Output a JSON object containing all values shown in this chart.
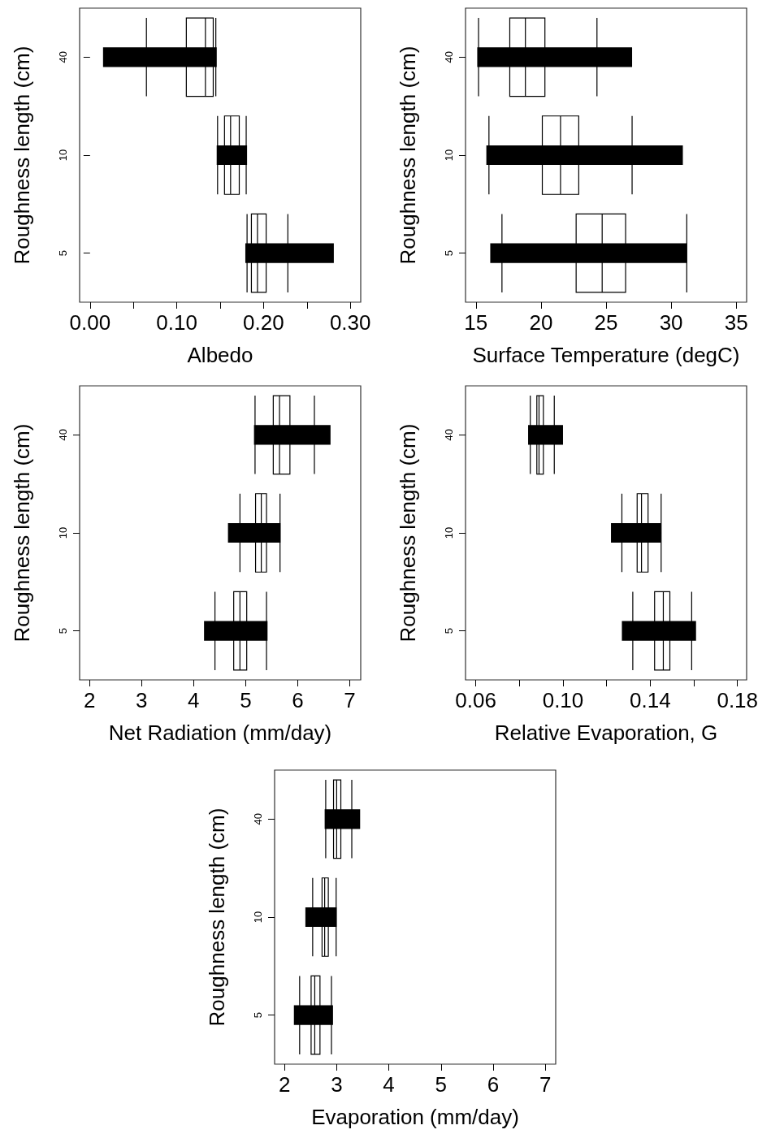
{
  "chart_data": [
    {
      "type": "box",
      "orientation": "horizontal",
      "xlabel": "Albedo",
      "ylabel": "Roughness length (cm)",
      "categories": [
        "40",
        "10",
        "5"
      ],
      "xlim": [
        -0.012,
        0.312
      ],
      "xticks": [
        {
          "value": 0,
          "label": "0.00"
        },
        {
          "value": 0.05,
          "label": null
        },
        {
          "value": 0.1,
          "label": "0.10"
        },
        {
          "value": 0.15,
          "label": null
        },
        {
          "value": 0.2,
          "label": "0.20"
        },
        {
          "value": 0.25,
          "label": null
        },
        {
          "value": 0.3,
          "label": "0.30"
        }
      ],
      "series": [
        {
          "type": "box",
          "color": "#000000",
          "boxes": [
            {
              "low": 0.065,
              "q1": 0.111,
              "median": 0.133,
              "q3": 0.142,
              "high": 0.145
            },
            {
              "low": 0.147,
              "q1": 0.155,
              "median": 0.162,
              "q3": 0.172,
              "high": 0.18
            },
            {
              "low": 0.181,
              "q1": 0.186,
              "median": 0.193,
              "q3": 0.203,
              "high": 0.228
            }
          ]
        },
        {
          "type": "bar",
          "color": "#000000",
          "base": [
            0.015,
            0.146,
            0.179
          ],
          "values": [
            0.131,
            0.035,
            0.102
          ]
        }
      ]
    },
    {
      "type": "box",
      "orientation": "horizontal",
      "xlabel": "Surface Temperature (degC)",
      "ylabel": "Roughness length (cm)",
      "categories": [
        "40",
        "10",
        "5"
      ],
      "xlim": [
        14.2,
        35.8
      ],
      "xticks": [
        15,
        20,
        25,
        30,
        35
      ],
      "series": [
        {
          "type": "box",
          "color": "#000000",
          "boxes": [
            {
              "low": 15.2,
              "q1": 17.6,
              "median": 18.8,
              "q3": 20.3,
              "high": 24.3
            },
            {
              "low": 16.0,
              "q1": 20.1,
              "median": 21.5,
              "q3": 22.9,
              "high": 27.0
            },
            {
              "low": 17.0,
              "q1": 22.7,
              "median": 24.7,
              "q3": 26.5,
              "high": 31.2
            }
          ]
        },
        {
          "type": "bar",
          "color": "#000000",
          "base": [
            15.1,
            15.8,
            16.1
          ],
          "values": [
            11.9,
            15.1,
            15.1
          ]
        }
      ]
    },
    {
      "type": "box",
      "orientation": "horizontal",
      "xlabel": "Net Radiation (mm/day)",
      "ylabel": "Roughness length (cm)",
      "categories": [
        "40",
        "10",
        "5"
      ],
      "xlim": [
        1.81,
        7.21
      ],
      "xticks": [
        2,
        3,
        4,
        5,
        6,
        7
      ],
      "series": [
        {
          "type": "box",
          "color": "#000000",
          "boxes": [
            {
              "low": 5.18,
              "q1": 5.53,
              "median": 5.65,
              "q3": 5.85,
              "high": 6.32
            },
            {
              "low": 4.89,
              "q1": 5.19,
              "median": 5.3,
              "q3": 5.4,
              "high": 5.66
            },
            {
              "low": 4.41,
              "q1": 4.77,
              "median": 4.89,
              "q3": 5.02,
              "high": 5.4
            }
          ]
        },
        {
          "type": "bar",
          "color": "#000000",
          "base": [
            5.16,
            4.66,
            4.2
          ],
          "values": [
            1.47,
            1.01,
            1.22
          ]
        }
      ]
    },
    {
      "type": "box",
      "orientation": "horizontal",
      "xlabel": "Relative Evaporation, G",
      "ylabel": "Roughness length (cm)",
      "categories": [
        "40",
        "10",
        "5"
      ],
      "xlim": [
        0.0553,
        0.1842
      ],
      "xticks": [
        {
          "value": 0.06,
          "label": "0.06"
        },
        {
          "value": 0.08,
          "label": null
        },
        {
          "value": 0.1,
          "label": "0.10"
        },
        {
          "value": 0.12,
          "label": null
        },
        {
          "value": 0.14,
          "label": "0.14"
        },
        {
          "value": 0.16,
          "label": null
        },
        {
          "value": 0.18,
          "label": "0.18"
        }
      ],
      "series": [
        {
          "type": "box",
          "color": "#000000",
          "boxes": [
            {
              "low": 0.085,
              "q1": 0.088,
              "median": 0.089,
              "q3": 0.091,
              "high": 0.096
            },
            {
              "low": 0.127,
              "q1": 0.134,
              "median": 0.136,
              "q3": 0.139,
              "high": 0.145
            },
            {
              "low": 0.132,
              "q1": 0.142,
              "median": 0.146,
              "q3": 0.149,
              "high": 0.159
            }
          ]
        },
        {
          "type": "bar",
          "color": "#000000",
          "base": [
            0.084,
            0.122,
            0.127
          ],
          "values": [
            0.016,
            0.023,
            0.034
          ]
        }
      ]
    },
    {
      "type": "box",
      "orientation": "horizontal",
      "xlabel": "Evaporation (mm/day)",
      "ylabel": "Roughness length (cm)",
      "categories": [
        "40",
        "10",
        "5"
      ],
      "xlim": [
        1.81,
        7.2
      ],
      "xticks": [
        2,
        3,
        4,
        5,
        6,
        7
      ],
      "series": [
        {
          "type": "box",
          "color": "#000000",
          "boxes": [
            {
              "low": 2.79,
              "q1": 2.94,
              "median": 3.0,
              "q3": 3.08,
              "high": 3.29
            },
            {
              "low": 2.54,
              "q1": 2.72,
              "median": 2.77,
              "q3": 2.84,
              "high": 2.99
            },
            {
              "low": 2.29,
              "q1": 2.51,
              "median": 2.58,
              "q3": 2.68,
              "high": 2.9
            }
          ]
        },
        {
          "type": "bar",
          "color": "#000000",
          "base": [
            2.77,
            2.4,
            2.18
          ],
          "values": [
            0.68,
            0.6,
            0.75
          ]
        }
      ]
    }
  ]
}
